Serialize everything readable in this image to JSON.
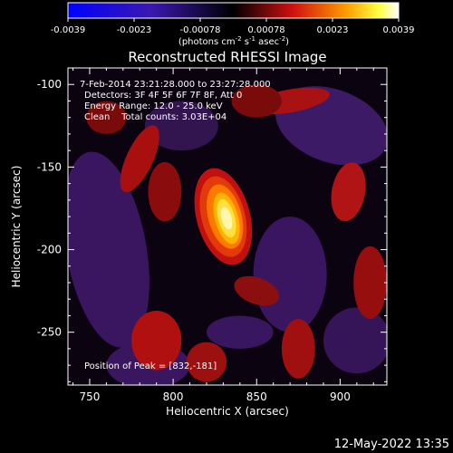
{
  "colorbar": {
    "ticks": [
      "-0.0039",
      "-0.0023",
      "-0.00078",
      "0.00078",
      "0.0023",
      "0.0039"
    ],
    "units_main": "(photons cm",
    "units_exp1": "-2",
    "units_mid": " s",
    "units_exp2": "-1",
    "units_end": " asec",
    "units_exp3": "-2",
    "units_close": ")"
  },
  "title": "Reconstructed RHESSI Image",
  "info": {
    "time_range": "7-Feb-2014 23:21:28.000 to 23:27:28.000",
    "detectors": "Detectors: 3F 4F 5F 6F 7F 8F, Att 0",
    "energy": "Energy Range: 12.0 - 25.0 keV",
    "clean": "Clean    Total counts: 3.03E+04",
    "peak": "Position of Peak = [832,-181]"
  },
  "footer_date": "12-May-2022 13:35",
  "chart_data": {
    "type": "heatmap",
    "title": "Reconstructed RHESSI Image",
    "xlabel": "Heliocentric X (arcsec)",
    "ylabel": "Heliocentric Y (arcsec)",
    "xlim": [
      737,
      928
    ],
    "ylim": [
      -282,
      -90
    ],
    "xticks": [
      750,
      800,
      850,
      900
    ],
    "yticks": [
      -100,
      -150,
      -200,
      -250
    ],
    "colorbar_range": [
      -0.0039,
      0.0039
    ],
    "colormap": "red-temperature (blue-purple for negative, red-yellow-white for positive)",
    "peak": [
      832,
      -181
    ],
    "peak_value": 0.0039
  }
}
